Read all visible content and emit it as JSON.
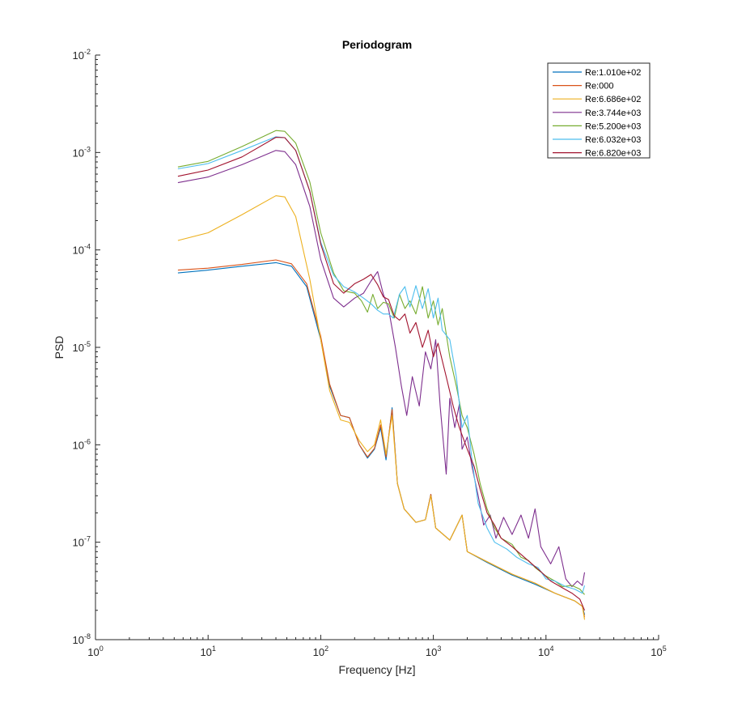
{
  "chart_data": {
    "type": "line",
    "title": "Periodogram",
    "xlabel": "Frequency [Hz]",
    "ylabel": "PSD",
    "xscale": "log",
    "yscale": "log",
    "xlim": [
      1,
      100000
    ],
    "ylim": [
      1e-08,
      0.01
    ],
    "xticks": [
      {
        "value": 1,
        "base": "10",
        "exp": "0"
      },
      {
        "value": 10,
        "base": "10",
        "exp": "1"
      },
      {
        "value": 100,
        "base": "10",
        "exp": "2"
      },
      {
        "value": 1000,
        "base": "10",
        "exp": "3"
      },
      {
        "value": 10000,
        "base": "10",
        "exp": "4"
      },
      {
        "value": 100000,
        "base": "10",
        "exp": "5"
      }
    ],
    "yticks": [
      {
        "value": 1e-08,
        "base": "10",
        "exp": "-8"
      },
      {
        "value": 1e-07,
        "base": "10",
        "exp": "-7"
      },
      {
        "value": 1e-06,
        "base": "10",
        "exp": "-6"
      },
      {
        "value": 1e-05,
        "base": "10",
        "exp": "-5"
      },
      {
        "value": 0.0001,
        "base": "10",
        "exp": "-4"
      },
      {
        "value": 0.001,
        "base": "10",
        "exp": "-3"
      },
      {
        "value": 0.01,
        "base": "10",
        "exp": "-2"
      }
    ],
    "grid": false,
    "legend_position": "top-right",
    "series": [
      {
        "name": "Re:1.010e+02",
        "color": "#0072BD",
        "points": [
          [
            5.4,
            5.8e-05
          ],
          [
            10,
            6.2e-05
          ],
          [
            20,
            6.8e-05
          ],
          [
            40,
            7.4e-05
          ],
          [
            55,
            6.8e-05
          ],
          [
            75,
            4.2e-05
          ],
          [
            100,
            1.2e-05
          ],
          [
            120,
            4e-06
          ],
          [
            150,
            2e-06
          ],
          [
            180,
            1.9e-06
          ],
          [
            220,
            1e-06
          ],
          [
            260,
            7.3e-07
          ],
          [
            300,
            9e-07
          ],
          [
            340,
            1.5e-06
          ],
          [
            380,
            7e-07
          ],
          [
            430,
            2.4e-06
          ],
          [
            480,
            4e-07
          ],
          [
            550,
            2.2e-07
          ],
          [
            700,
            1.6e-07
          ],
          [
            850,
            1.7e-07
          ],
          [
            950,
            3.1e-07
          ],
          [
            1050,
            1.4e-07
          ],
          [
            1400,
            1.05e-07
          ],
          [
            1800,
            1.9e-07
          ],
          [
            2000,
            8e-08
          ],
          [
            3000,
            6.2e-08
          ],
          [
            5000,
            4.6e-08
          ],
          [
            8000,
            3.7e-08
          ],
          [
            12000,
            3e-08
          ],
          [
            18000,
            2.5e-08
          ],
          [
            21000,
            2.2e-08
          ],
          [
            22000,
            1.8e-08
          ]
        ]
      },
      {
        "name": "Re:000",
        "color": "#D95319",
        "points": [
          [
            5.4,
            6.2e-05
          ],
          [
            10,
            6.5e-05
          ],
          [
            20,
            7.1e-05
          ],
          [
            40,
            7.9e-05
          ],
          [
            55,
            7.2e-05
          ],
          [
            75,
            4.5e-05
          ],
          [
            100,
            1.3e-05
          ],
          [
            120,
            4.2e-06
          ],
          [
            150,
            2e-06
          ],
          [
            180,
            1.9e-06
          ],
          [
            220,
            1e-06
          ],
          [
            260,
            7.5e-07
          ],
          [
            300,
            9.2e-07
          ],
          [
            340,
            1.6e-06
          ],
          [
            380,
            7.5e-07
          ],
          [
            430,
            2.3e-06
          ],
          [
            480,
            4e-07
          ],
          [
            550,
            2.2e-07
          ],
          [
            700,
            1.6e-07
          ],
          [
            850,
            1.7e-07
          ],
          [
            950,
            3.1e-07
          ],
          [
            1050,
            1.4e-07
          ],
          [
            1400,
            1.05e-07
          ],
          [
            1800,
            1.9e-07
          ],
          [
            2000,
            8e-08
          ],
          [
            3000,
            6.3e-08
          ],
          [
            5000,
            4.7e-08
          ],
          [
            8000,
            3.8e-08
          ],
          [
            12000,
            3e-08
          ],
          [
            18000,
            2.5e-08
          ],
          [
            21000,
            2.2e-08
          ],
          [
            22000,
            1.7e-08
          ]
        ]
      },
      {
        "name": "Re:6.686e+02",
        "color": "#EDB120",
        "points": [
          [
            5.4,
            0.000125
          ],
          [
            10,
            0.00015
          ],
          [
            20,
            0.00023
          ],
          [
            40,
            0.00036
          ],
          [
            48,
            0.00035
          ],
          [
            60,
            0.00022
          ],
          [
            80,
            5e-05
          ],
          [
            100,
            1.2e-05
          ],
          [
            120,
            3.6e-06
          ],
          [
            150,
            1.8e-06
          ],
          [
            180,
            1.7e-06
          ],
          [
            220,
            1.1e-06
          ],
          [
            260,
            8.5e-07
          ],
          [
            300,
            1e-06
          ],
          [
            340,
            1.8e-06
          ],
          [
            380,
            8e-07
          ],
          [
            430,
            2e-06
          ],
          [
            480,
            4e-07
          ],
          [
            550,
            2.2e-07
          ],
          [
            700,
            1.6e-07
          ],
          [
            850,
            1.7e-07
          ],
          [
            950,
            3e-07
          ],
          [
            1050,
            1.4e-07
          ],
          [
            1400,
            1.05e-07
          ],
          [
            1800,
            1.9e-07
          ],
          [
            2000,
            8e-08
          ],
          [
            3000,
            6.3e-08
          ],
          [
            5000,
            4.7e-08
          ],
          [
            8000,
            3.8e-08
          ],
          [
            12000,
            3e-08
          ],
          [
            18000,
            2.5e-08
          ],
          [
            21000,
            2.2e-08
          ],
          [
            22000,
            1.6e-08
          ]
        ]
      },
      {
        "name": "Re:3.744e+03",
        "color": "#7E2F8E",
        "points": [
          [
            5.4,
            0.00049
          ],
          [
            10,
            0.00056
          ],
          [
            20,
            0.00075
          ],
          [
            40,
            0.00105
          ],
          [
            48,
            0.00102
          ],
          [
            60,
            0.00075
          ],
          [
            80,
            0.00028
          ],
          [
            100,
            8e-05
          ],
          [
            130,
            3.2e-05
          ],
          [
            160,
            2.6e-05
          ],
          [
            200,
            3.2e-05
          ],
          [
            240,
            3.6e-05
          ],
          [
            280,
            4.8e-05
          ],
          [
            320,
            6e-05
          ],
          [
            360,
            3.5e-05
          ],
          [
            400,
            2.5e-05
          ],
          [
            460,
            1e-05
          ],
          [
            520,
            4e-06
          ],
          [
            580,
            2e-06
          ],
          [
            650,
            5e-06
          ],
          [
            750,
            2.5e-06
          ],
          [
            850,
            9e-06
          ],
          [
            950,
            6e-06
          ],
          [
            1050,
            1.2e-05
          ],
          [
            1150,
            2.5e-06
          ],
          [
            1300,
            5e-07
          ],
          [
            1400,
            3e-06
          ],
          [
            1550,
            1.5e-06
          ],
          [
            1700,
            2.6e-06
          ],
          [
            1800,
            9e-07
          ],
          [
            2000,
            1.2e-06
          ],
          [
            2200,
            6e-07
          ],
          [
            2500,
            3e-07
          ],
          [
            2800,
            1.5e-07
          ],
          [
            3200,
            1.9e-07
          ],
          [
            3600,
            1.1e-07
          ],
          [
            4200,
            1.8e-07
          ],
          [
            5000,
            1.2e-07
          ],
          [
            6000,
            1.9e-07
          ],
          [
            7000,
            1.1e-07
          ],
          [
            8000,
            2.2e-07
          ],
          [
            9000,
            9e-08
          ],
          [
            11000,
            6e-08
          ],
          [
            13000,
            9e-08
          ],
          [
            15000,
            4.2e-08
          ],
          [
            17000,
            3.5e-08
          ],
          [
            19000,
            4e-08
          ],
          [
            21000,
            3.6e-08
          ],
          [
            22000,
            4.9e-08
          ]
        ]
      },
      {
        "name": "Re:5.200e+03",
        "color": "#77AC30",
        "points": [
          [
            5.4,
            0.00071
          ],
          [
            10,
            0.00081
          ],
          [
            20,
            0.00115
          ],
          [
            40,
            0.00168
          ],
          [
            48,
            0.00165
          ],
          [
            60,
            0.00125
          ],
          [
            80,
            0.0005
          ],
          [
            100,
            0.00015
          ],
          [
            130,
            5.8e-05
          ],
          [
            160,
            3.8e-05
          ],
          [
            200,
            3.6e-05
          ],
          [
            230,
            3e-05
          ],
          [
            260,
            2.3e-05
          ],
          [
            290,
            3.5e-05
          ],
          [
            320,
            2.5e-05
          ],
          [
            360,
            2.9e-05
          ],
          [
            400,
            2.8e-05
          ],
          [
            450,
            2e-05
          ],
          [
            500,
            3.5e-05
          ],
          [
            560,
            2.5e-05
          ],
          [
            620,
            3e-05
          ],
          [
            700,
            2.2e-05
          ],
          [
            800,
            4.2e-05
          ],
          [
            900,
            2e-05
          ],
          [
            1000,
            3e-05
          ],
          [
            1100,
            1.7e-05
          ],
          [
            1200,
            2.5e-05
          ],
          [
            1400,
            8e-06
          ],
          [
            1600,
            4e-06
          ],
          [
            1800,
            2e-06
          ],
          [
            2000,
            1.5e-06
          ],
          [
            2300,
            8e-07
          ],
          [
            2600,
            4e-07
          ],
          [
            3000,
            2.2e-07
          ],
          [
            3500,
            1.4e-07
          ],
          [
            4000,
            1.1e-07
          ],
          [
            5000,
            9.5e-08
          ],
          [
            6000,
            7e-08
          ],
          [
            7000,
            6.5e-08
          ],
          [
            8000,
            5.5e-08
          ],
          [
            10000,
            4.5e-08
          ],
          [
            12000,
            4e-08
          ],
          [
            14000,
            3.5e-08
          ],
          [
            17000,
            3.6e-08
          ],
          [
            20000,
            3.3e-08
          ],
          [
            22000,
            2.9e-08
          ]
        ]
      },
      {
        "name": "Re:6.032e+03",
        "color": "#4DBEEE",
        "points": [
          [
            5.4,
            0.00068
          ],
          [
            10,
            0.00077
          ],
          [
            20,
            0.00105
          ],
          [
            40,
            0.00145
          ],
          [
            48,
            0.00142
          ],
          [
            60,
            0.00105
          ],
          [
            80,
            0.0004
          ],
          [
            100,
            0.00012
          ],
          [
            130,
            5.5e-05
          ],
          [
            160,
            4.2e-05
          ],
          [
            200,
            3.7e-05
          ],
          [
            240,
            3.2e-05
          ],
          [
            280,
            2.8e-05
          ],
          [
            320,
            2.4e-05
          ],
          [
            360,
            2.2e-05
          ],
          [
            400,
            2.2e-05
          ],
          [
            440,
            2e-05
          ],
          [
            500,
            3.5e-05
          ],
          [
            560,
            4.2e-05
          ],
          [
            620,
            2.6e-05
          ],
          [
            700,
            4.3e-05
          ],
          [
            800,
            2.5e-05
          ],
          [
            900,
            4e-05
          ],
          [
            1000,
            2e-05
          ],
          [
            1100,
            3.2e-05
          ],
          [
            1200,
            1.5e-05
          ],
          [
            1400,
            1.2e-05
          ],
          [
            1600,
            5e-06
          ],
          [
            1800,
            1.5e-06
          ],
          [
            2000,
            2e-06
          ],
          [
            2200,
            7e-07
          ],
          [
            2500,
            2.5e-07
          ],
          [
            3000,
            1.4e-07
          ],
          [
            3500,
            1e-07
          ],
          [
            4500,
            8.5e-08
          ],
          [
            5500,
            7e-08
          ],
          [
            7000,
            6e-08
          ],
          [
            8500,
            5.5e-08
          ],
          [
            10000,
            4.2e-08
          ],
          [
            12000,
            4e-08
          ],
          [
            15000,
            3.5e-08
          ],
          [
            18000,
            3.3e-08
          ],
          [
            21000,
            3e-08
          ],
          [
            22000,
            3.6e-08
          ]
        ]
      },
      {
        "name": "Re:6.820e+03",
        "color": "#A2142F",
        "points": [
          [
            5.4,
            0.00057
          ],
          [
            10,
            0.00066
          ],
          [
            20,
            0.0009
          ],
          [
            40,
            0.00143
          ],
          [
            48,
            0.00142
          ],
          [
            60,
            0.00105
          ],
          [
            80,
            0.0004
          ],
          [
            100,
            0.000115
          ],
          [
            130,
            4.5e-05
          ],
          [
            160,
            3.6e-05
          ],
          [
            200,
            4.5e-05
          ],
          [
            240,
            5e-05
          ],
          [
            280,
            5.6e-05
          ],
          [
            320,
            4.4e-05
          ],
          [
            360,
            3.3e-05
          ],
          [
            400,
            3.1e-05
          ],
          [
            450,
            2.1e-05
          ],
          [
            500,
            1.9e-05
          ],
          [
            560,
            2.2e-05
          ],
          [
            620,
            1.4e-05
          ],
          [
            700,
            1.8e-05
          ],
          [
            800,
            1e-05
          ],
          [
            900,
            1.5e-05
          ],
          [
            1000,
            8e-06
          ],
          [
            1100,
            1.1e-05
          ],
          [
            1300,
            5e-06
          ],
          [
            1500,
            2.5e-06
          ],
          [
            1700,
            1.5e-06
          ],
          [
            2000,
            9e-07
          ],
          [
            2300,
            6e-07
          ],
          [
            2600,
            3.5e-07
          ],
          [
            3000,
            2e-07
          ],
          [
            3500,
            1.5e-07
          ],
          [
            4000,
            1.1e-07
          ],
          [
            5000,
            9e-08
          ],
          [
            6000,
            7.5e-08
          ],
          [
            7500,
            6e-08
          ],
          [
            9000,
            5e-08
          ],
          [
            11000,
            4e-08
          ],
          [
            14000,
            3.4e-08
          ],
          [
            17000,
            3e-08
          ],
          [
            20000,
            2.6e-08
          ],
          [
            22000,
            2e-08
          ]
        ]
      }
    ]
  }
}
